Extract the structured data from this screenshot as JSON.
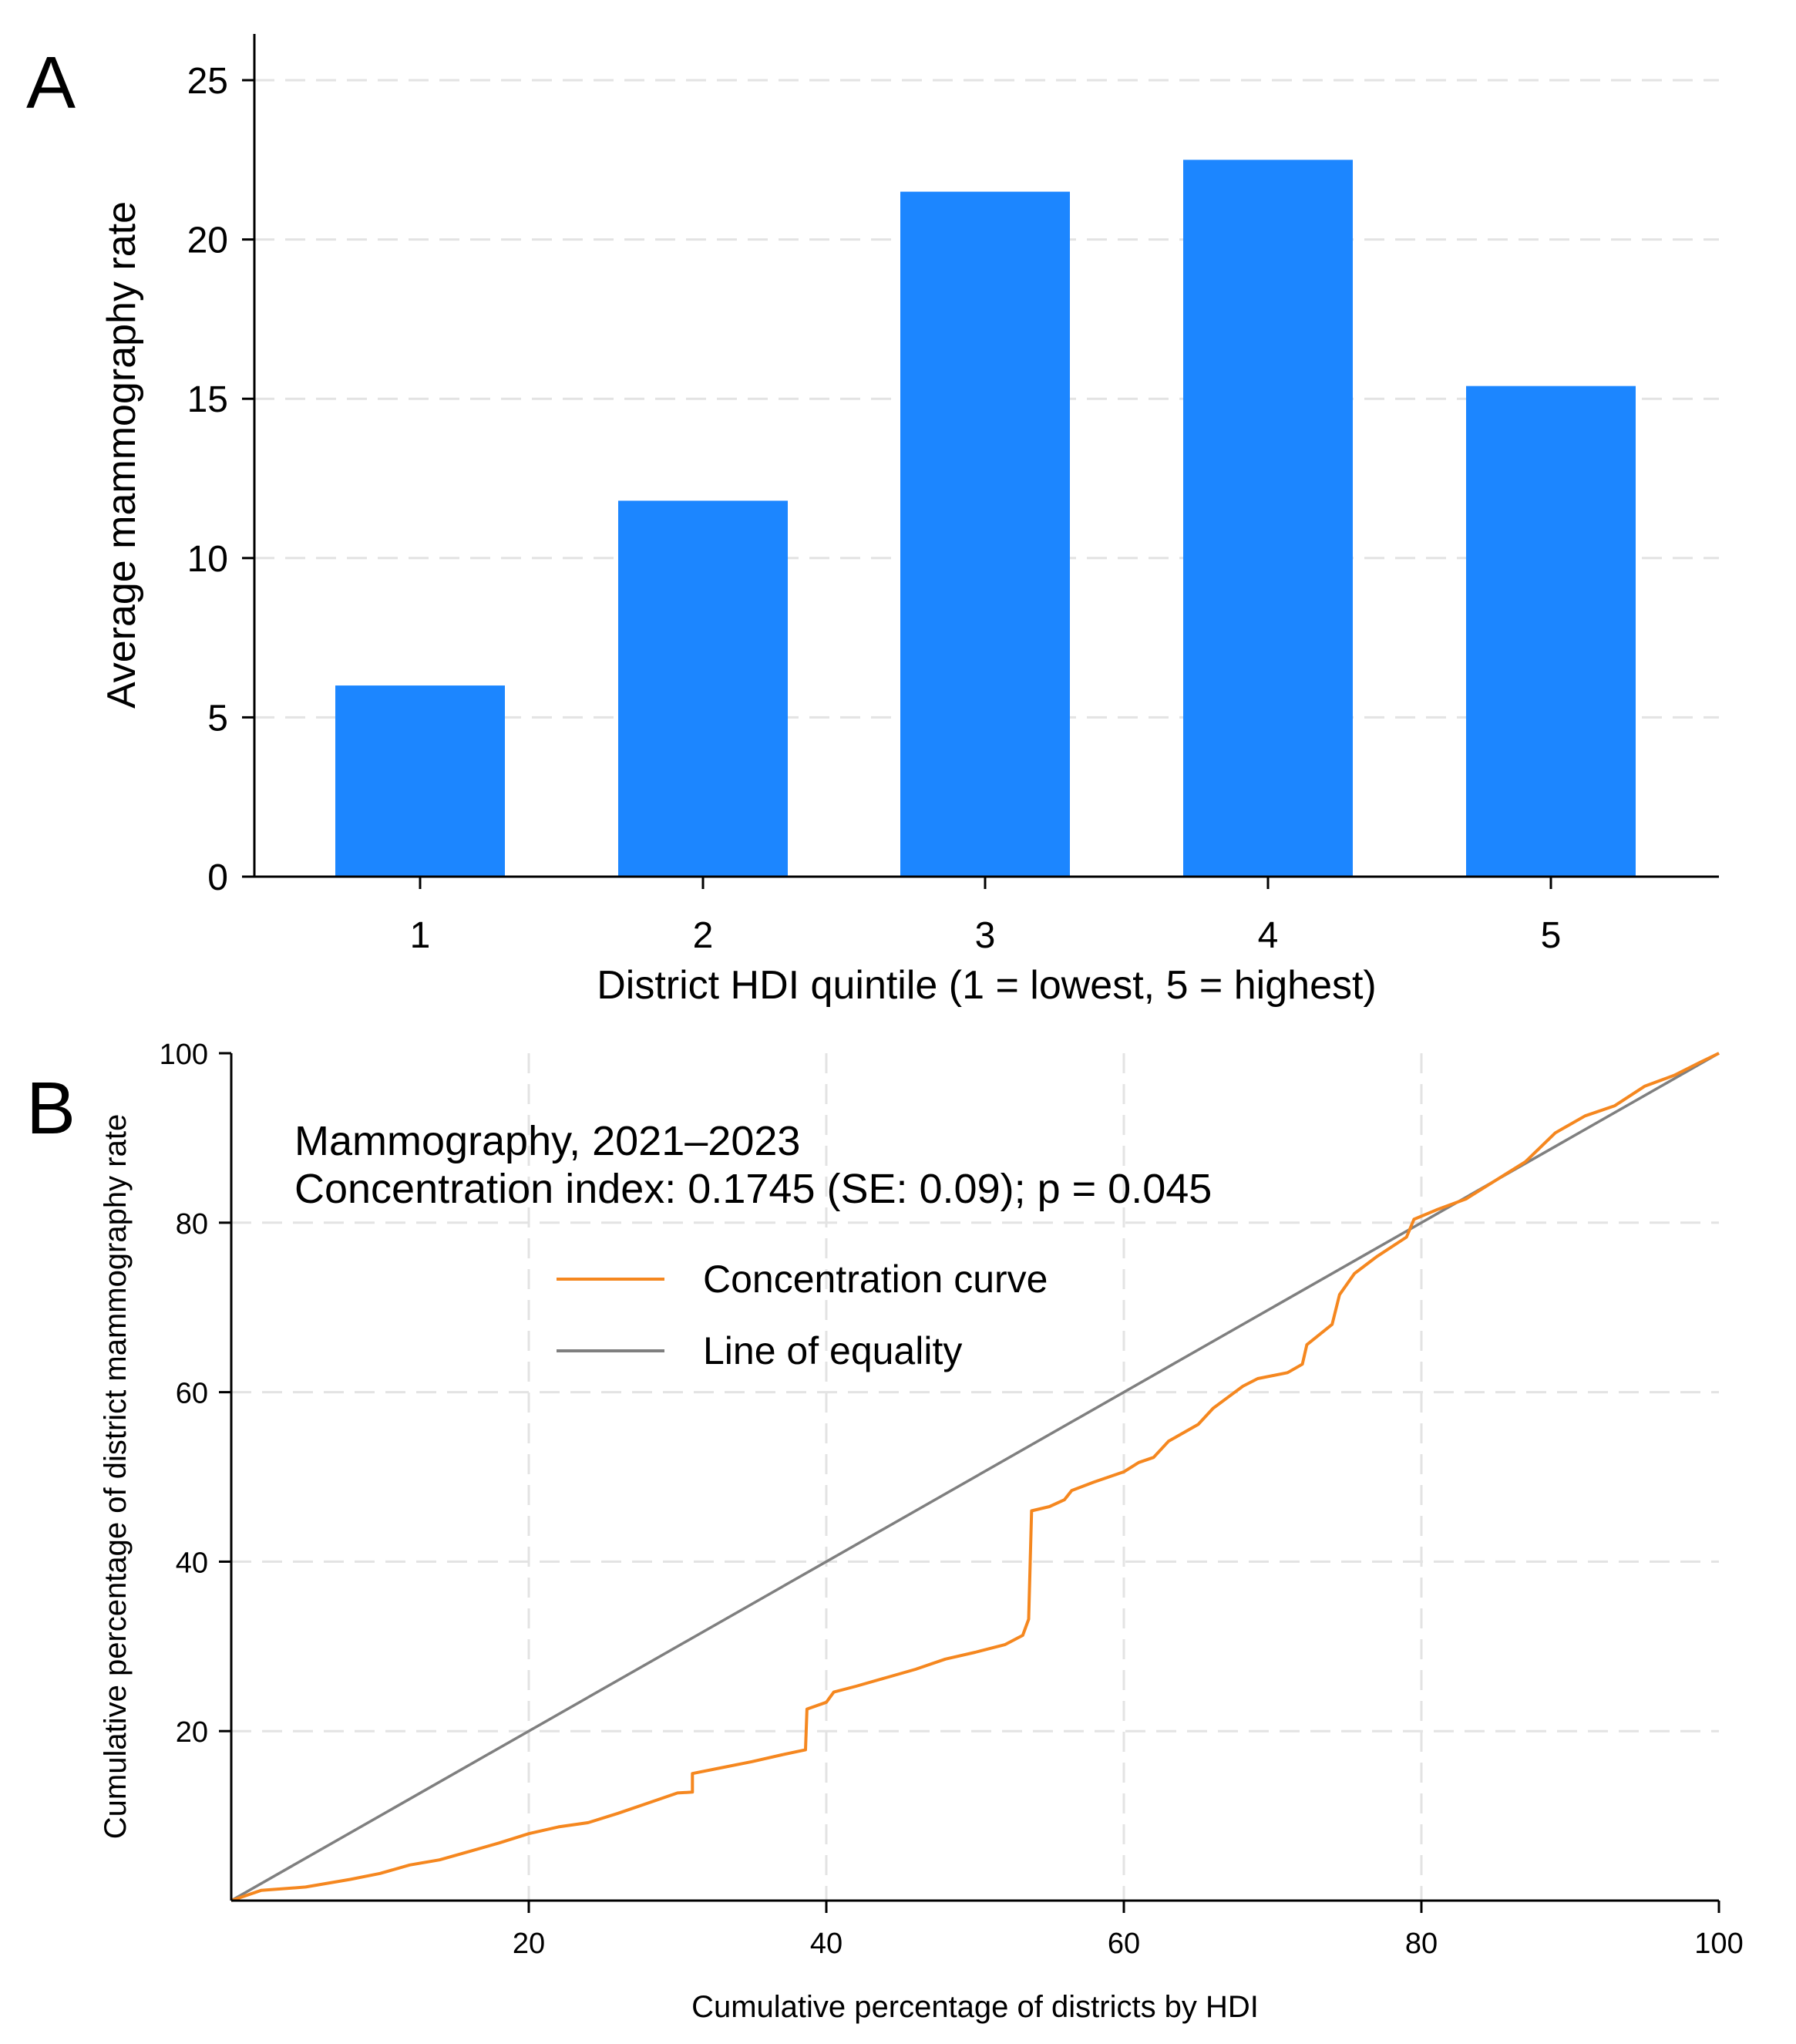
{
  "chart_data": [
    {
      "panel": "A",
      "type": "bar",
      "title": "",
      "xlabel": "District HDI quintile (1 = lowest, 5 = highest)",
      "ylabel": "Average mammography rate",
      "categories": [
        "1",
        "2",
        "3",
        "4",
        "5"
      ],
      "values": [
        6.0,
        11.8,
        21.5,
        22.5,
        15.4
      ],
      "ylim": [
        0,
        26
      ],
      "yticks": [
        0,
        5,
        10,
        15,
        20,
        25
      ],
      "grid": true,
      "bar_color": "#1c86ff"
    },
    {
      "panel": "B",
      "type": "line",
      "xlabel": "Cumulative percentage of districts by HDI",
      "ylabel": "Cumulative percentage of district mammography rate",
      "xlim": [
        0,
        100
      ],
      "ylim": [
        0,
        100
      ],
      "xticks": [
        20,
        40,
        60,
        80,
        100
      ],
      "yticks": [
        20,
        40,
        60,
        80,
        100
      ],
      "grid": true,
      "annotation": [
        "Mammography, 2021–2023",
        "Concentration index: 0.1745 (SE: 0.09); p = 0.045"
      ],
      "legend_position": "upper-left",
      "series": [
        {
          "name": "Concentration curve",
          "color": "#f5871f",
          "points": [
            [
              0,
              0
            ],
            [
              2,
              1.2
            ],
            [
              5,
              1.6
            ],
            [
              8,
              2.5
            ],
            [
              10,
              3.2
            ],
            [
              12,
              4.2
            ],
            [
              14,
              4.8
            ],
            [
              16,
              5.8
            ],
            [
              18,
              6.8
            ],
            [
              20,
              7.9
            ],
            [
              22,
              8.7
            ],
            [
              24,
              9.2
            ],
            [
              26,
              10.3
            ],
            [
              28,
              11.5
            ],
            [
              30,
              12.7
            ],
            [
              31,
              12.8
            ],
            [
              31,
              15.0
            ],
            [
              33,
              15.7
            ],
            [
              35,
              16.4
            ],
            [
              37,
              17.2
            ],
            [
              38.6,
              17.8
            ],
            [
              38.7,
              22.6
            ],
            [
              40,
              23.4
            ],
            [
              40.5,
              24.6
            ],
            [
              42,
              25.3
            ],
            [
              44,
              26.3
            ],
            [
              46,
              27.3
            ],
            [
              48,
              28.5
            ],
            [
              50,
              29.3
            ],
            [
              52,
              30.2
            ],
            [
              53.2,
              31.3
            ],
            [
              53.6,
              33.2
            ],
            [
              53.8,
              46.0
            ],
            [
              55,
              46.5
            ],
            [
              56,
              47.3
            ],
            [
              56.5,
              48.4
            ],
            [
              58,
              49.4
            ],
            [
              60,
              50.6
            ],
            [
              61,
              51.7
            ],
            [
              62,
              52.3
            ],
            [
              63,
              54.2
            ],
            [
              65,
              56.2
            ],
            [
              66,
              58.1
            ],
            [
              67,
              59.4
            ],
            [
              68,
              60.7
            ],
            [
              69,
              61.6
            ],
            [
              71,
              62.3
            ],
            [
              72,
              63.3
            ],
            [
              72.3,
              65.6
            ],
            [
              74,
              68.0
            ],
            [
              74.5,
              71.5
            ],
            [
              75.5,
              74.0
            ],
            [
              77,
              76.0
            ],
            [
              79,
              78.3
            ],
            [
              79.5,
              80.4
            ],
            [
              81,
              81.5
            ],
            [
              83,
              82.8
            ],
            [
              85,
              85.0
            ],
            [
              87,
              87.2
            ],
            [
              89,
              90.6
            ],
            [
              91,
              92.6
            ],
            [
              93,
              93.8
            ],
            [
              95,
              96.1
            ],
            [
              97,
              97.4
            ],
            [
              98.7,
              98.9
            ],
            [
              100,
              100
            ]
          ]
        },
        {
          "name": "Line of equality",
          "color": "#7f7f7f",
          "points": [
            [
              0,
              0
            ],
            [
              100,
              100
            ]
          ]
        }
      ]
    }
  ]
}
